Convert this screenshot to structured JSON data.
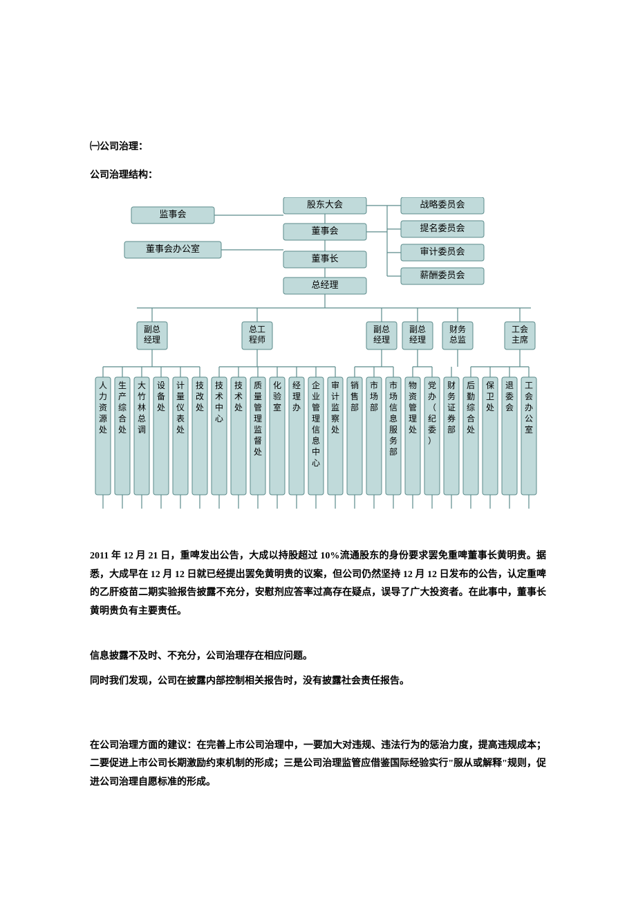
{
  "headings": {
    "section": "㈠公司治理：",
    "structure": "公司治理结构："
  },
  "chart": {
    "colors": {
      "box_fill": "#c0dada",
      "box_stroke": "#5a8a8a",
      "line": "#5a8a8a",
      "text": "#000000",
      "bg": "#ffffff"
    },
    "top": {
      "shareholders": "股东大会",
      "supervisory": "监事会",
      "board": "董事会",
      "board_office": "董事会办公室",
      "chairman": "董事长",
      "gm": "总经理",
      "committees": [
        "战略委员会",
        "提名委员会",
        "审计委员会",
        "薪酬委员会"
      ]
    },
    "managers": [
      {
        "l1": "副总",
        "l2": "经理"
      },
      {
        "l1": "总工",
        "l2": "程师"
      },
      {
        "l1": "副总",
        "l2": "经理"
      },
      {
        "l1": "副总",
        "l2": "经理"
      },
      {
        "l1": "财务",
        "l2": "总监"
      },
      {
        "l1": "工会",
        "l2": "主席"
      }
    ],
    "departments": [
      "人力资源处",
      "生产综合处",
      "大竹林总调",
      "设备处",
      "计量仪表处",
      "技改处",
      "技术中心",
      "技术处",
      "质量管理监督处",
      "化验室",
      "经理办",
      "企业管理信息中心",
      "审计监察处",
      "销售部",
      "市场部",
      "市场信息服务部",
      "物资管理处",
      "党办（纪委）",
      "财务证券部",
      "后勤综合处",
      "保卫处",
      "退委会",
      "工会办公室"
    ]
  },
  "body": {
    "p1": "2011 年 12 月 21 日，重啤发出公告，大成以持股超过 10%流通股东的身份要求罢免重啤董事长黄明贵。据悉，大成早在 12 月 12 日就已经提出罢免黄明贵的议案，但公司仍然坚持 12 月 12 日发布的公告，认定重啤的乙肝疫苗二期实验报告披露不充分，安慰剂应答率过高存在疑点，误导了广大投资者。在此事中，董事长黄明贵负有主要责任。",
    "p2": "信息披露不及时、不充分，公司治理存在相应问题。",
    "p3": "同时我们发现，公司在披露内部控制相关报告时，没有披露社会责任报告。",
    "p4_lead": "在公司治理方面的建议：",
    "p4_rest": "在完善上市公司治理中，一要加大对违规、违法行为的惩治力度，提高违规成本；二要促进上市公司长期激励约束机制的形成；三是公司治理监管应借鉴国际经验实行\"服从或解释\"规则，促进公司治理自愿标准的形成。"
  }
}
